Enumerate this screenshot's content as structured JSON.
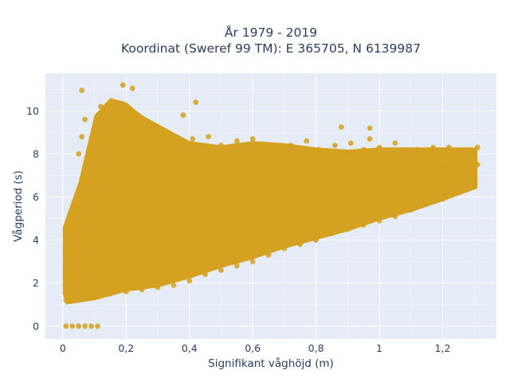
{
  "chart_data": {
    "type": "scatter",
    "title_line1": "År 1979 - 2019",
    "title_line2": "Koordinat (Sweref 99 TM): E 365705, N 6139987",
    "xlabel": "Signifikant våghöjd (m)",
    "ylabel": "Vågperiod (s)",
    "xlim": [
      -0.055,
      1.37
    ],
    "ylim": [
      -0.6,
      11.75
    ],
    "xticks": [
      0,
      0.2,
      0.4,
      0.6,
      0.8,
      1,
      1.2
    ],
    "xtick_labels": [
      "0",
      "0,2",
      "0,4",
      "0,6",
      "0,8",
      "1",
      "1,2"
    ],
    "yticks": [
      0,
      2,
      4,
      6,
      8,
      10
    ],
    "ytick_labels": [
      "0",
      "2",
      "4",
      "6",
      "8",
      "10"
    ],
    "grid": true,
    "marker_color": "#d4a120",
    "plot_bg": "#e5ecf6",
    "series": [
      {
        "values_description_free": true,
        "points": [
          [
            0.01,
            0.0
          ],
          [
            0.03,
            0.0
          ],
          [
            0.05,
            0.0
          ],
          [
            0.07,
            0.0
          ],
          [
            0.09,
            0.0
          ],
          [
            0.11,
            0.0
          ],
          [
            0.01,
            1.2
          ],
          [
            0.02,
            1.5
          ],
          [
            0.03,
            1.8
          ],
          [
            0.02,
            2.2
          ],
          [
            0.04,
            2.6
          ],
          [
            0.03,
            3.0
          ],
          [
            0.01,
            3.6
          ],
          [
            0.02,
            4.2
          ],
          [
            0.01,
            4.4
          ],
          [
            0.05,
            1.3
          ],
          [
            0.06,
            2.0
          ],
          [
            0.07,
            2.6
          ],
          [
            0.06,
            3.2
          ],
          [
            0.05,
            3.8
          ],
          [
            0.08,
            4.2
          ],
          [
            0.06,
            5.0
          ],
          [
            0.07,
            5.6
          ],
          [
            0.05,
            6.1
          ],
          [
            0.06,
            6.6
          ],
          [
            0.07,
            7.4
          ],
          [
            0.05,
            8.0
          ],
          [
            0.06,
            8.8
          ],
          [
            0.07,
            9.6
          ],
          [
            0.06,
            10.95
          ],
          [
            0.1,
            1.4
          ],
          [
            0.11,
            2.2
          ],
          [
            0.12,
            3.0
          ],
          [
            0.1,
            3.6
          ],
          [
            0.13,
            4.2
          ],
          [
            0.11,
            4.8
          ],
          [
            0.12,
            5.4
          ],
          [
            0.1,
            6.0
          ],
          [
            0.13,
            6.6
          ],
          [
            0.12,
            7.2
          ],
          [
            0.11,
            7.8
          ],
          [
            0.12,
            8.4
          ],
          [
            0.13,
            9.0
          ],
          [
            0.11,
            9.6
          ],
          [
            0.12,
            10.2
          ],
          [
            0.15,
            1.5
          ],
          [
            0.16,
            2.4
          ],
          [
            0.17,
            3.1
          ],
          [
            0.15,
            3.8
          ],
          [
            0.16,
            4.5
          ],
          [
            0.17,
            5.2
          ],
          [
            0.15,
            5.8
          ],
          [
            0.16,
            6.5
          ],
          [
            0.17,
            7.1
          ],
          [
            0.15,
            7.7
          ],
          [
            0.16,
            8.3
          ],
          [
            0.17,
            8.9
          ],
          [
            0.15,
            9.5
          ],
          [
            0.16,
            10.1
          ],
          [
            0.19,
            11.2
          ],
          [
            0.22,
            11.05
          ],
          [
            0.2,
            1.6
          ],
          [
            0.21,
            2.6
          ],
          [
            0.22,
            3.4
          ],
          [
            0.2,
            4.1
          ],
          [
            0.21,
            4.7
          ],
          [
            0.22,
            5.3
          ],
          [
            0.2,
            5.9
          ],
          [
            0.21,
            6.5
          ],
          [
            0.22,
            7.1
          ],
          [
            0.2,
            7.7
          ],
          [
            0.21,
            8.3
          ],
          [
            0.22,
            8.9
          ],
          [
            0.2,
            9.5
          ],
          [
            0.21,
            10.0
          ],
          [
            0.25,
            1.7
          ],
          [
            0.26,
            2.8
          ],
          [
            0.27,
            3.5
          ],
          [
            0.25,
            4.2
          ],
          [
            0.26,
            4.9
          ],
          [
            0.27,
            5.5
          ],
          [
            0.25,
            6.1
          ],
          [
            0.26,
            6.7
          ],
          [
            0.27,
            7.3
          ],
          [
            0.25,
            7.9
          ],
          [
            0.26,
            8.5
          ],
          [
            0.27,
            9.1
          ],
          [
            0.25,
            9.6
          ],
          [
            0.3,
            1.8
          ],
          [
            0.31,
            2.9
          ],
          [
            0.32,
            3.6
          ],
          [
            0.3,
            4.3
          ],
          [
            0.31,
            5.0
          ],
          [
            0.32,
            5.6
          ],
          [
            0.3,
            6.2
          ],
          [
            0.31,
            6.8
          ],
          [
            0.32,
            7.4
          ],
          [
            0.3,
            8.0
          ],
          [
            0.31,
            8.6
          ],
          [
            0.32,
            9.0
          ],
          [
            0.35,
            1.9
          ],
          [
            0.36,
            3.0
          ],
          [
            0.37,
            3.7
          ],
          [
            0.35,
            4.4
          ],
          [
            0.36,
            5.1
          ],
          [
            0.37,
            5.7
          ],
          [
            0.35,
            6.3
          ],
          [
            0.36,
            6.9
          ],
          [
            0.37,
            7.5
          ],
          [
            0.35,
            8.1
          ],
          [
            0.36,
            8.6
          ],
          [
            0.38,
            9.8
          ],
          [
            0.42,
            10.4
          ],
          [
            0.4,
            2.1
          ],
          [
            0.41,
            3.1
          ],
          [
            0.42,
            3.8
          ],
          [
            0.4,
            4.5
          ],
          [
            0.41,
            5.2
          ],
          [
            0.42,
            5.8
          ],
          [
            0.4,
            6.4
          ],
          [
            0.41,
            7.0
          ],
          [
            0.42,
            7.6
          ],
          [
            0.4,
            8.2
          ],
          [
            0.41,
            8.7
          ],
          [
            0.45,
            2.4
          ],
          [
            0.46,
            3.3
          ],
          [
            0.47,
            4.0
          ],
          [
            0.45,
            4.6
          ],
          [
            0.46,
            5.3
          ],
          [
            0.47,
            5.9
          ],
          [
            0.45,
            6.5
          ],
          [
            0.46,
            7.1
          ],
          [
            0.47,
            7.7
          ],
          [
            0.45,
            8.3
          ],
          [
            0.46,
            8.8
          ],
          [
            0.5,
            2.6
          ],
          [
            0.51,
            3.5
          ],
          [
            0.52,
            4.2
          ],
          [
            0.5,
            4.8
          ],
          [
            0.51,
            5.4
          ],
          [
            0.52,
            6.0
          ],
          [
            0.5,
            6.6
          ],
          [
            0.51,
            7.2
          ],
          [
            0.52,
            7.8
          ],
          [
            0.5,
            8.4
          ],
          [
            0.55,
            2.8
          ],
          [
            0.56,
            3.7
          ],
          [
            0.57,
            4.3
          ],
          [
            0.55,
            5.0
          ],
          [
            0.56,
            5.6
          ],
          [
            0.57,
            6.2
          ],
          [
            0.55,
            6.8
          ],
          [
            0.56,
            7.4
          ],
          [
            0.57,
            8.0
          ],
          [
            0.55,
            8.6
          ],
          [
            0.6,
            3.0
          ],
          [
            0.61,
            3.9
          ],
          [
            0.62,
            4.5
          ],
          [
            0.6,
            5.1
          ],
          [
            0.61,
            5.7
          ],
          [
            0.62,
            6.3
          ],
          [
            0.6,
            6.9
          ],
          [
            0.61,
            7.5
          ],
          [
            0.62,
            8.1
          ],
          [
            0.6,
            8.7
          ],
          [
            0.65,
            3.3
          ],
          [
            0.66,
            4.1
          ],
          [
            0.67,
            4.7
          ],
          [
            0.65,
            5.3
          ],
          [
            0.66,
            5.9
          ],
          [
            0.67,
            6.5
          ],
          [
            0.65,
            7.1
          ],
          [
            0.66,
            7.7
          ],
          [
            0.67,
            8.3
          ],
          [
            0.7,
            3.6
          ],
          [
            0.71,
            4.3
          ],
          [
            0.72,
            4.9
          ],
          [
            0.7,
            5.5
          ],
          [
            0.71,
            6.1
          ],
          [
            0.72,
            6.7
          ],
          [
            0.7,
            7.3
          ],
          [
            0.71,
            7.9
          ],
          [
            0.72,
            8.4
          ],
          [
            0.75,
            3.8
          ],
          [
            0.76,
            4.5
          ],
          [
            0.77,
            5.1
          ],
          [
            0.75,
            5.7
          ],
          [
            0.76,
            6.3
          ],
          [
            0.77,
            6.9
          ],
          [
            0.75,
            7.5
          ],
          [
            0.76,
            8.1
          ],
          [
            0.77,
            8.6
          ],
          [
            0.8,
            4.0
          ],
          [
            0.81,
            4.7
          ],
          [
            0.82,
            5.3
          ],
          [
            0.8,
            5.9
          ],
          [
            0.81,
            6.5
          ],
          [
            0.82,
            7.1
          ],
          [
            0.8,
            7.7
          ],
          [
            0.81,
            8.2
          ],
          [
            0.85,
            4.3
          ],
          [
            0.86,
            4.9
          ],
          [
            0.87,
            5.5
          ],
          [
            0.85,
            6.1
          ],
          [
            0.86,
            6.7
          ],
          [
            0.87,
            7.3
          ],
          [
            0.85,
            7.9
          ],
          [
            0.86,
            8.4
          ],
          [
            0.88,
            9.25
          ],
          [
            0.9,
            4.5
          ],
          [
            0.91,
            5.1
          ],
          [
            0.92,
            5.7
          ],
          [
            0.9,
            6.3
          ],
          [
            0.91,
            6.9
          ],
          [
            0.92,
            7.5
          ],
          [
            0.9,
            8.0
          ],
          [
            0.91,
            8.5
          ],
          [
            0.95,
            4.7
          ],
          [
            0.96,
            5.3
          ],
          [
            0.97,
            5.9
          ],
          [
            0.95,
            6.5
          ],
          [
            0.96,
            7.1
          ],
          [
            0.97,
            7.7
          ],
          [
            0.95,
            8.2
          ],
          [
            0.97,
            8.7
          ],
          [
            1.0,
            4.9
          ],
          [
            1.01,
            5.5
          ],
          [
            1.02,
            6.1
          ],
          [
            1.0,
            6.7
          ],
          [
            1.01,
            7.3
          ],
          [
            1.02,
            7.8
          ],
          [
            1.0,
            8.3
          ],
          [
            0.97,
            9.2
          ],
          [
            1.05,
            5.1
          ],
          [
            1.06,
            5.7
          ],
          [
            1.07,
            6.3
          ],
          [
            1.05,
            6.9
          ],
          [
            1.06,
            7.5
          ],
          [
            1.07,
            8.0
          ],
          [
            1.05,
            8.5
          ],
          [
            1.1,
            5.4
          ],
          [
            1.11,
            6.0
          ],
          [
            1.12,
            6.6
          ],
          [
            1.1,
            7.2
          ],
          [
            1.11,
            7.7
          ],
          [
            1.12,
            8.2
          ],
          [
            1.15,
            5.7
          ],
          [
            1.16,
            6.2
          ],
          [
            1.17,
            6.8
          ],
          [
            1.15,
            7.3
          ],
          [
            1.16,
            7.9
          ],
          [
            1.17,
            8.3
          ],
          [
            1.2,
            5.9
          ],
          [
            1.21,
            6.4
          ],
          [
            1.22,
            6.9
          ],
          [
            1.2,
            7.4
          ],
          [
            1.21,
            7.9
          ],
          [
            1.22,
            8.3
          ],
          [
            1.25,
            6.2
          ],
          [
            1.26,
            6.6
          ],
          [
            1.27,
            7.1
          ],
          [
            1.25,
            7.6
          ],
          [
            1.26,
            8.0
          ],
          [
            1.29,
            6.5
          ],
          [
            1.3,
            7.0
          ],
          [
            1.31,
            7.5
          ],
          [
            1.3,
            8.0
          ],
          [
            1.31,
            8.3
          ]
        ]
      }
    ]
  }
}
